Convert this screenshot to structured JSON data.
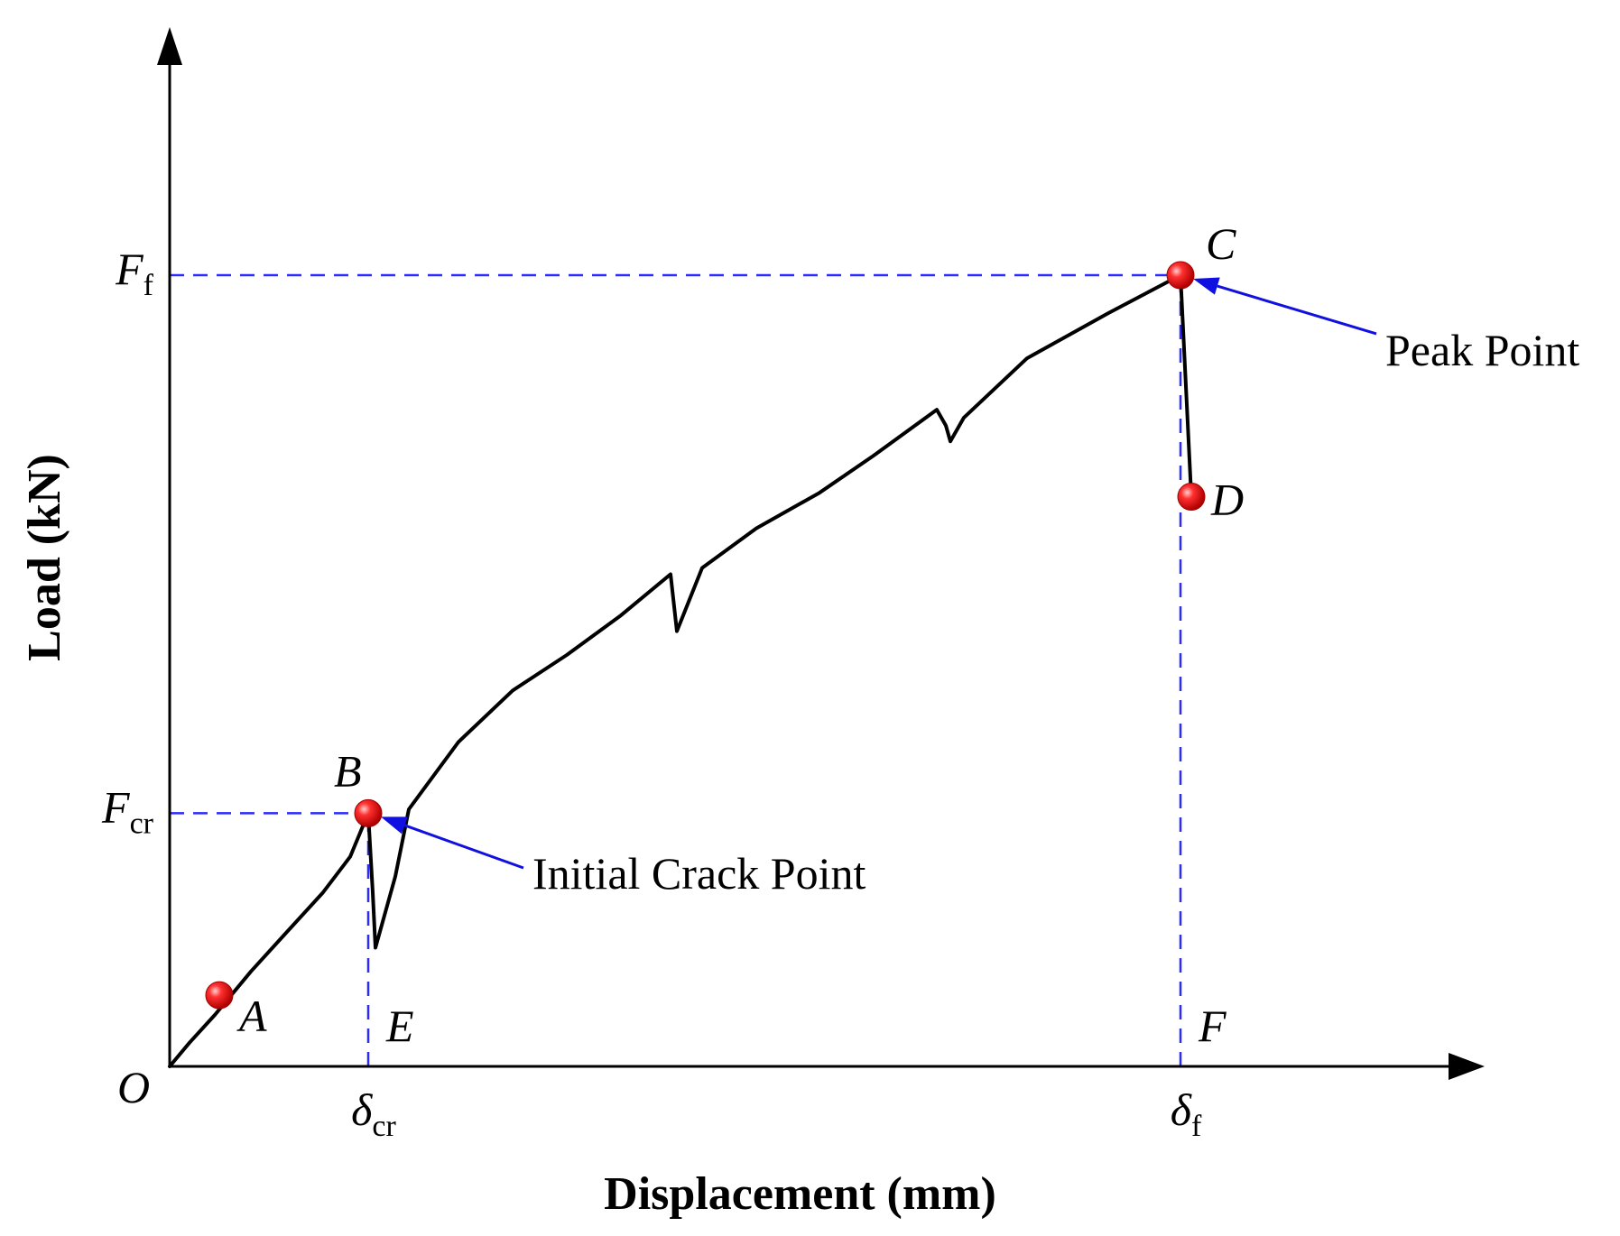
{
  "chart_data": {
    "type": "line",
    "title": "",
    "xlabel": "Displacement (mm)",
    "ylabel": "Load (kN)",
    "axes_numeric_ticks": false,
    "grid": false,
    "legend": "none",
    "xlim": [
      0,
      14
    ],
    "ylim": [
      0,
      10
    ],
    "x_ticks": [
      {
        "main": "δ",
        "sub": "cr",
        "value": 2.2
      },
      {
        "main": "δ",
        "sub": "f",
        "value": 11.2
      }
    ],
    "y_ticks": [
      {
        "main": "F",
        "sub": "cr",
        "value": 3.2
      },
      {
        "main": "F",
        "sub": "f",
        "value": 10.0
      }
    ],
    "origin_label": "O",
    "series": [
      {
        "color": "#000000",
        "points": [
          [
            0.0,
            0.0
          ],
          [
            0.22,
            0.3
          ],
          [
            0.5,
            0.65
          ],
          [
            0.9,
            1.2
          ],
          [
            1.3,
            1.7
          ],
          [
            1.7,
            2.2
          ],
          [
            2.0,
            2.65
          ],
          [
            2.2,
            3.2
          ],
          [
            2.25,
            2.2
          ],
          [
            2.28,
            1.5
          ],
          [
            2.5,
            2.4
          ],
          [
            2.65,
            3.25
          ],
          [
            3.2,
            4.1
          ],
          [
            3.8,
            4.75
          ],
          [
            4.4,
            5.2
          ],
          [
            5.0,
            5.7
          ],
          [
            5.55,
            6.22
          ],
          [
            5.62,
            5.5
          ],
          [
            5.9,
            6.3
          ],
          [
            6.5,
            6.8
          ],
          [
            7.2,
            7.25
          ],
          [
            7.8,
            7.72
          ],
          [
            8.5,
            8.3
          ],
          [
            8.6,
            8.1
          ],
          [
            8.65,
            7.9
          ],
          [
            8.8,
            8.2
          ],
          [
            9.5,
            8.95
          ],
          [
            10.4,
            9.52
          ],
          [
            11.2,
            10.0
          ],
          [
            11.32,
            7.2
          ]
        ]
      }
    ],
    "reference_lines": {
      "color": "#2b2bff",
      "style": "dashed",
      "horizontal": [
        3.2,
        10.0
      ],
      "vertical": [
        2.2,
        11.2
      ]
    },
    "marker_color": "#ee1111",
    "points": [
      {
        "name": "A",
        "x": 0.55,
        "y": 0.9
      },
      {
        "name": "B",
        "x": 2.2,
        "y": 3.2
      },
      {
        "name": "C",
        "x": 11.2,
        "y": 10.0
      },
      {
        "name": "D",
        "x": 11.32,
        "y": 7.2
      }
    ],
    "axis_labels": [
      {
        "name": "E",
        "x": 2.2
      },
      {
        "name": "F",
        "x": 11.2
      }
    ],
    "annotations": [
      {
        "text": "Initial Crack Point",
        "points_to": "B",
        "arrow_color": "#1010e0"
      },
      {
        "text": "Peak Point",
        "points_to": "C",
        "arrow_color": "#1010e0"
      }
    ]
  }
}
